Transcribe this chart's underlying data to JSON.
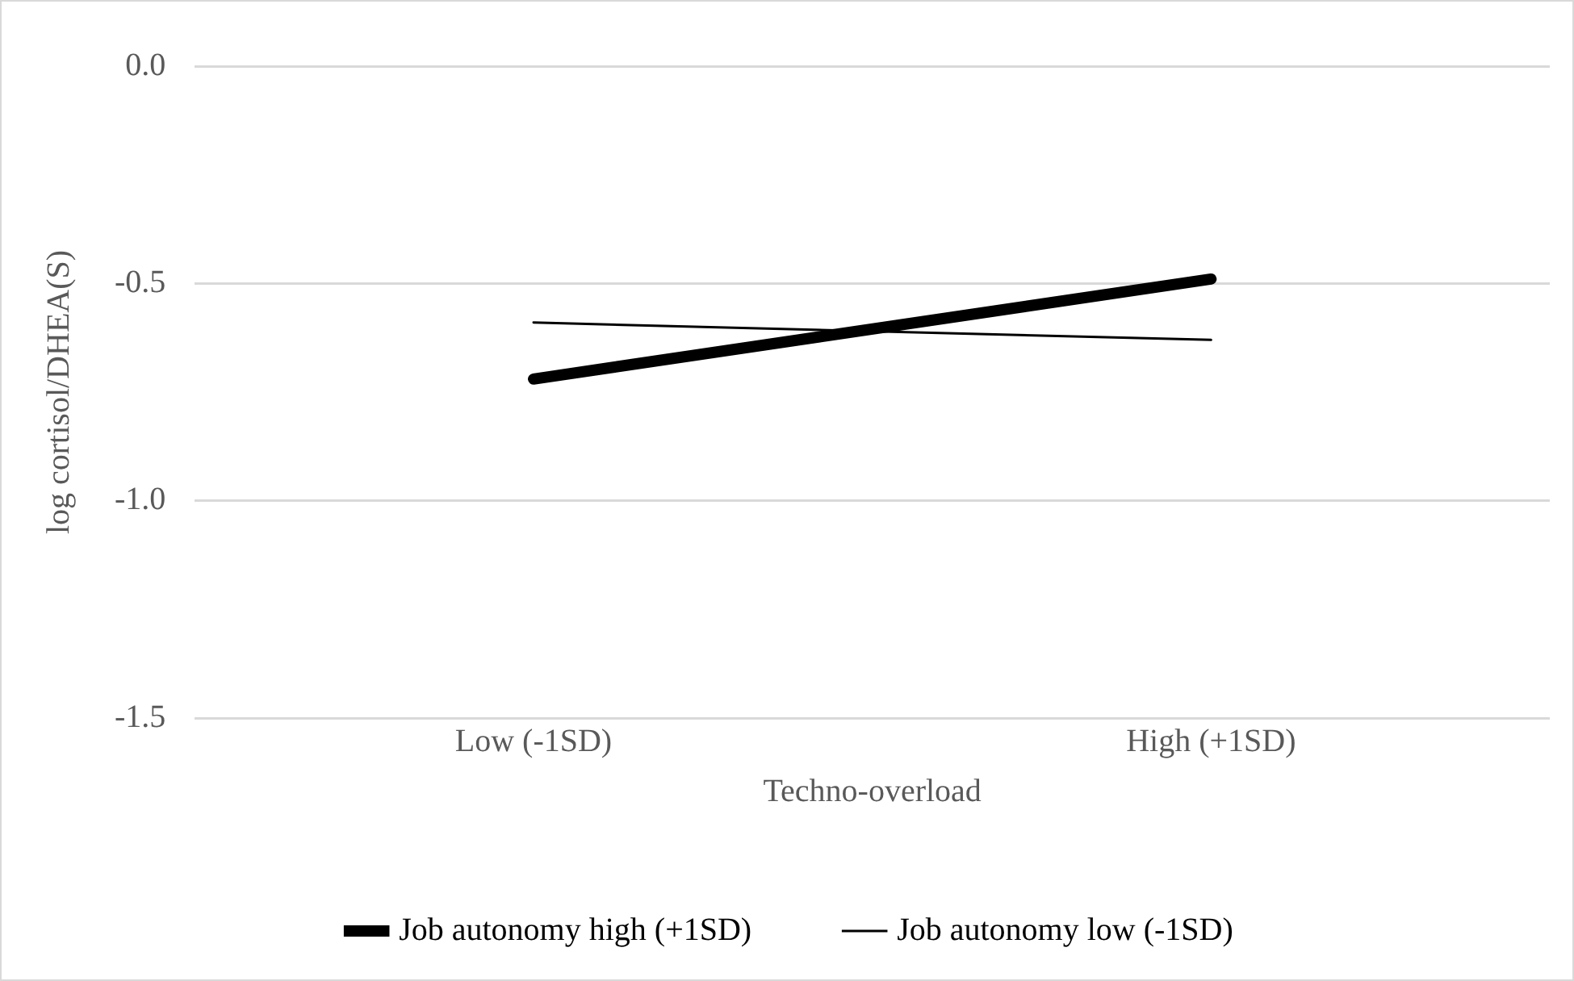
{
  "chart_data": {
    "type": "line",
    "xlabel": "Techno-overload",
    "ylabel": "log cortisol/DHEA(S)",
    "categories": [
      "Low (-1SD)",
      "High (+1SD)"
    ],
    "series": [
      {
        "name": "Job autonomy high (+1SD)",
        "color": "#000000",
        "values": [
          -0.72,
          -0.49
        ]
      },
      {
        "name": "Job autonomy low (-1SD)",
        "color": "#000000",
        "values": [
          -0.59,
          -0.63
        ]
      }
    ],
    "ylim": [
      -1.5,
      0
    ],
    "yticks": [
      {
        "value": -1.5,
        "label": "-1.5"
      },
      {
        "value": -1,
        "label": "-1.0"
      },
      {
        "value": -0.5,
        "label": "-0.5"
      },
      {
        "value": 0,
        "label": "0.0"
      }
    ],
    "grid": "y",
    "legend": "bottom",
    "marker": "none"
  }
}
